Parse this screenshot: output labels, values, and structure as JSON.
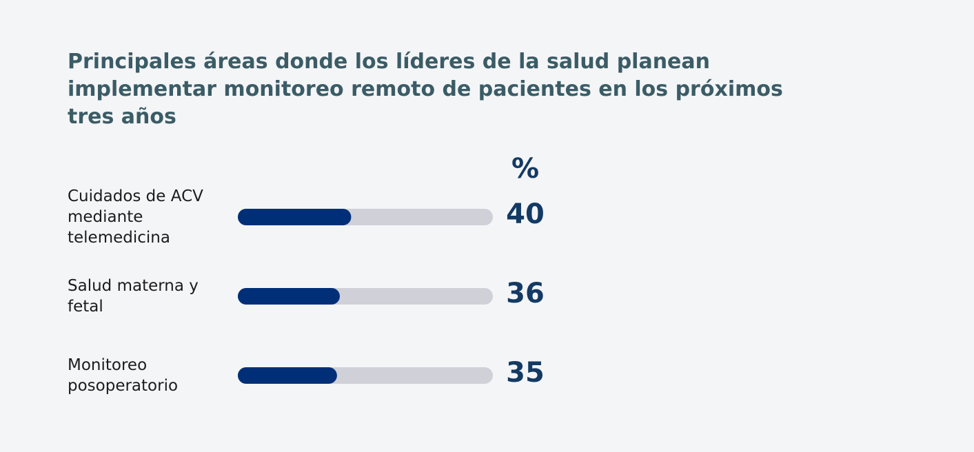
{
  "chart_data": {
    "type": "bar",
    "orientation": "horizontal",
    "title": "Principales áreas donde los líderes de la salud planean implementar monitoreo remoto de pacientes en los próximos tres años",
    "unit": "%",
    "categories": [
      "Cuidados de ACV mediante telemedicina",
      "Salud materna y fetal",
      "Monitoreo posoperatorio"
    ],
    "values": [
      40,
      36,
      35
    ],
    "color": "#002f78",
    "track_color": "#cfd0d8",
    "xlim": [
      0,
      90
    ]
  }
}
